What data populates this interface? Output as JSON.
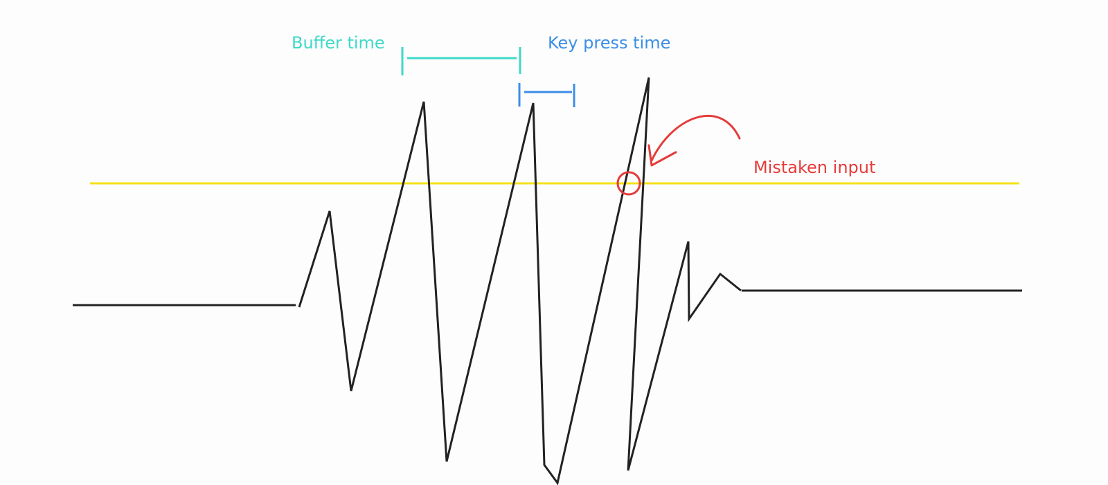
{
  "annotations": {
    "buffer_time": {
      "label": "Buffer time",
      "color": "#3fd9c9"
    },
    "key_press_time": {
      "label": "Key press time",
      "color": "#3b8ee6"
    },
    "mistaken_input": {
      "label": "Mistaken input",
      "color": "#e53b3b"
    }
  },
  "threshold": {
    "color": "#f5e11a"
  },
  "signal": {
    "color": "#222222"
  }
}
